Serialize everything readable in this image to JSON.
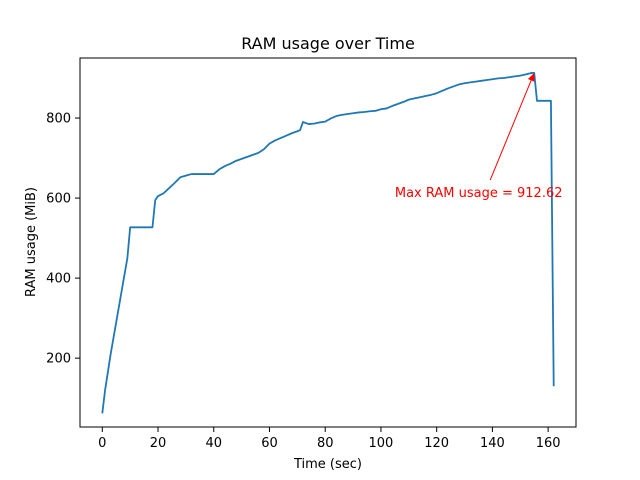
{
  "chart_data": {
    "type": "line",
    "title": "RAM usage over Time",
    "xlabel": "Time (sec)",
    "ylabel": "RAM usage (MiB)",
    "xlim": [
      -8,
      170
    ],
    "ylim": [
      28,
      950
    ],
    "xticks": [
      0,
      20,
      40,
      60,
      80,
      100,
      120,
      140,
      160
    ],
    "yticks": [
      200,
      400,
      600,
      800
    ],
    "grid": false,
    "series": [
      {
        "color": "#1f77b4",
        "x": [
          0,
          1,
          3,
          5,
          7,
          9,
          10,
          12,
          14,
          16,
          18,
          19,
          20,
          22,
          24,
          26,
          28,
          30,
          32,
          34,
          36,
          38,
          40,
          42,
          44,
          46,
          48,
          50,
          52,
          54,
          56,
          58,
          60,
          62,
          64,
          66,
          68,
          70,
          71,
          72,
          74,
          76,
          78,
          80,
          82,
          84,
          86,
          88,
          90,
          92,
          94,
          96,
          98,
          100,
          102,
          104,
          106,
          108,
          110,
          112,
          114,
          116,
          118,
          120,
          122,
          124,
          126,
          128,
          130,
          132,
          134,
          136,
          138,
          140,
          142,
          144,
          146,
          148,
          150,
          152,
          154,
          155,
          156,
          157,
          158,
          159,
          160,
          161,
          162
        ],
        "y": [
          62,
          120,
          210,
          290,
          370,
          450,
          527,
          527,
          527,
          527,
          527,
          595,
          605,
          612,
          625,
          638,
          652,
          656,
          660,
          660,
          660,
          660,
          660,
          672,
          680,
          686,
          693,
          698,
          703,
          708,
          713,
          722,
          736,
          744,
          750,
          756,
          762,
          767,
          770,
          790,
          785,
          786,
          789,
          791,
          799,
          805,
          808,
          810,
          812,
          814,
          815,
          817,
          818,
          822,
          824,
          830,
          835,
          840,
          846,
          849,
          852,
          855,
          858,
          862,
          868,
          874,
          879,
          884,
          887,
          889,
          891,
          893,
          895,
          897,
          899,
          900,
          902,
          904,
          906,
          909,
          912.62,
          912.62,
          843,
          843,
          843,
          843,
          843,
          843,
          130
        ]
      }
    ],
    "annotation": {
      "text": "Max RAM usage = 912.62",
      "color": "#ff0000",
      "point": [
        155,
        912.62
      ],
      "text_position": [
        105,
        615
      ]
    }
  }
}
